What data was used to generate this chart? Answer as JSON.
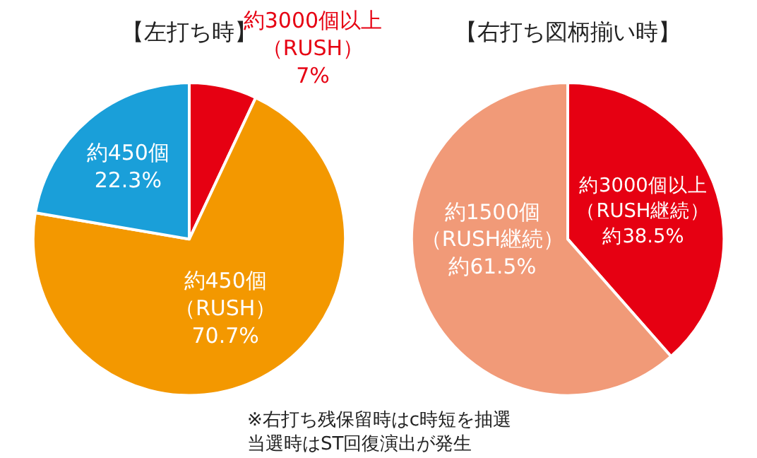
{
  "chart_data": [
    {
      "type": "pie",
      "title": "【左打ち時】",
      "categories": [
        "約3000個以上（RUSH）",
        "約450個（RUSH）",
        "約450個"
      ],
      "values": [
        7,
        70.7,
        22.3
      ],
      "colors": [
        "#e60012",
        "#f39800",
        "#1a9fd9"
      ],
      "value_labels": [
        "7%",
        "70.7%",
        "22.3%"
      ]
    },
    {
      "type": "pie",
      "title": "【右打ち図柄揃い時】",
      "categories": [
        "約3000個以上（RUSH継続）",
        "約1500個（RUSH継続）"
      ],
      "values": [
        38.5,
        61.5
      ],
      "colors": [
        "#e60012",
        "#f19a78"
      ],
      "value_labels": [
        "約38.5%",
        "約61.5%"
      ],
      "annotations": [
        "※右打ち残保留時はc時短を抽選当選時はST回復演出が発生"
      ]
    }
  ]
}
